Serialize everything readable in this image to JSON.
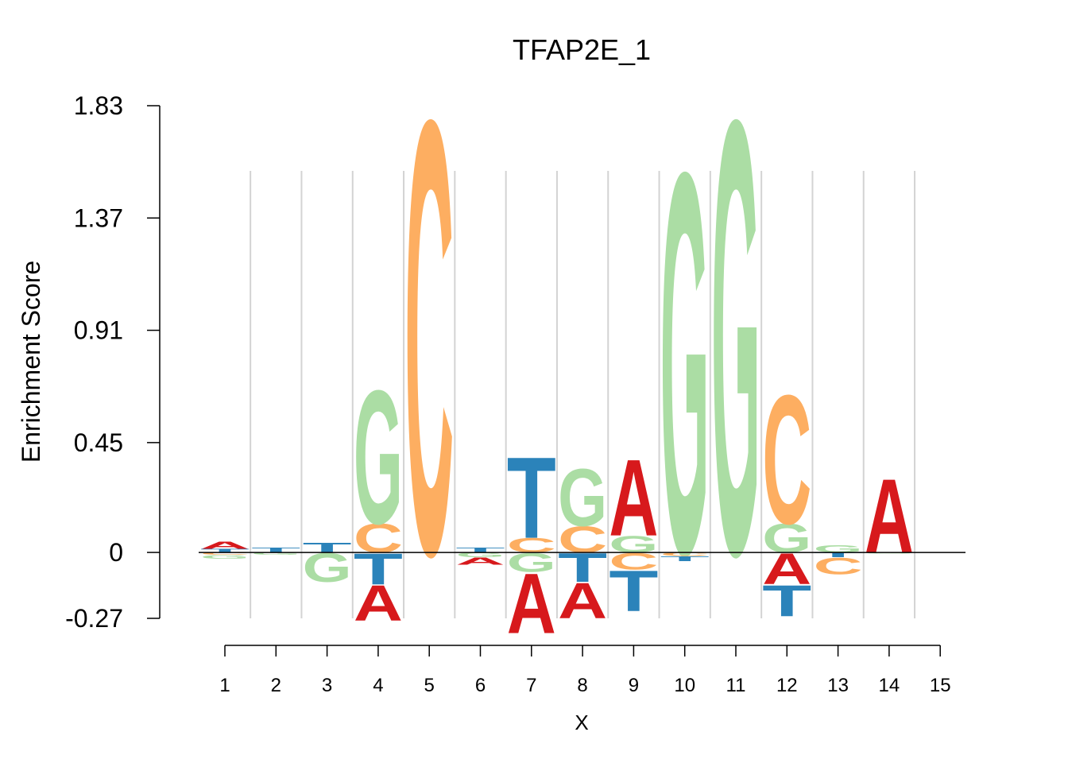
{
  "chart_data": {
    "type": "sequence-logo",
    "title": "TFAP2E_1",
    "ylabel": "Enrichment Score",
    "xlabel": "X",
    "ylim": [
      -0.27,
      1.83
    ],
    "yticks": [
      "1.83",
      "1.37",
      "0.91",
      "0.45",
      "0",
      "-0.27"
    ],
    "ytick_values": [
      1.83,
      1.37,
      0.91,
      0.45,
      0,
      -0.27
    ],
    "xticks": [
      "1",
      "2",
      "3",
      "4",
      "5",
      "6",
      "7",
      "8",
      "9",
      "10",
      "11",
      "12",
      "13",
      "14",
      "15"
    ],
    "colors": {
      "A": "#d7191c",
      "C": "#fdae61",
      "G": "#abdda4",
      "T": "#2b83ba"
    },
    "positions": [
      {
        "pos": 1,
        "up": [
          [
            "T",
            0.015
          ],
          [
            "A",
            0.03
          ]
        ],
        "down": [
          [
            "C",
            0.01
          ],
          [
            "G",
            0.015
          ]
        ]
      },
      {
        "pos": 2,
        "up": [
          [
            "T",
            0.02
          ]
        ],
        "down": [
          [
            "G",
            0.01
          ]
        ]
      },
      {
        "pos": 3,
        "up": [
          [
            "T",
            0.04
          ]
        ],
        "down": [
          [
            "G",
            0.12
          ]
        ]
      },
      {
        "pos": 4,
        "up": [
          [
            "C",
            0.12
          ],
          [
            "G",
            0.56
          ]
        ],
        "down": [
          [
            "T",
            0.13
          ],
          [
            "A",
            0.15
          ]
        ]
      },
      {
        "pos": 5,
        "up": [
          [
            "C",
            1.82
          ]
        ],
        "down": []
      },
      {
        "pos": 6,
        "up": [
          [
            "T",
            0.02
          ]
        ],
        "down": [
          [
            "G",
            0.02
          ],
          [
            "A",
            0.03
          ]
        ]
      },
      {
        "pos": 7,
        "up": [
          [
            "C",
            0.06
          ],
          [
            "T",
            0.34
          ]
        ],
        "down": [
          [
            "G",
            0.08
          ],
          [
            "A",
            0.25
          ]
        ]
      },
      {
        "pos": 8,
        "up": [
          [
            "C",
            0.11
          ],
          [
            "G",
            0.24
          ]
        ],
        "down": [
          [
            "T",
            0.12
          ],
          [
            "A",
            0.15
          ]
        ]
      },
      {
        "pos": 9,
        "up": [
          [
            "G",
            0.07
          ],
          [
            "A",
            0.32
          ]
        ],
        "down": [
          [
            "C",
            0.07
          ],
          [
            "T",
            0.17
          ]
        ]
      },
      {
        "pos": 10,
        "up": [
          [
            "G",
            1.6
          ]
        ],
        "down": [
          [
            "C",
            0.015
          ],
          [
            "T",
            0.02
          ]
        ]
      },
      {
        "pos": 11,
        "up": [
          [
            "G",
            1.82
          ]
        ],
        "down": []
      },
      {
        "pos": 12,
        "up": [
          [
            "G",
            0.12
          ],
          [
            "C",
            0.54
          ]
        ],
        "down": [
          [
            "A",
            0.13
          ],
          [
            "T",
            0.13
          ]
        ]
      },
      {
        "pos": 13,
        "up": [
          [
            "G",
            0.03
          ]
        ],
        "down": [
          [
            "T",
            0.02
          ],
          [
            "C",
            0.07
          ]
        ]
      },
      {
        "pos": 14,
        "up": [
          [
            "A",
            0.31
          ]
        ],
        "down": [
          [
            "G",
            0.005
          ]
        ]
      },
      {
        "pos": 15,
        "up": [],
        "down": []
      }
    ]
  }
}
